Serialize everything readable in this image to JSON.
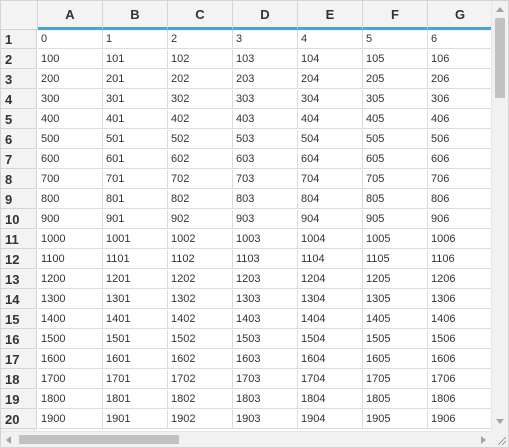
{
  "grid": {
    "columns": [
      "A",
      "B",
      "C",
      "D",
      "E",
      "F",
      "G"
    ],
    "rows": [
      {
        "label": "1",
        "values": [
          "0",
          "1",
          "2",
          "3",
          "4",
          "5",
          "6"
        ]
      },
      {
        "label": "2",
        "values": [
          "100",
          "101",
          "102",
          "103",
          "104",
          "105",
          "106"
        ]
      },
      {
        "label": "3",
        "values": [
          "200",
          "201",
          "202",
          "203",
          "204",
          "205",
          "206"
        ]
      },
      {
        "label": "4",
        "values": [
          "300",
          "301",
          "302",
          "303",
          "304",
          "305",
          "306"
        ]
      },
      {
        "label": "5",
        "values": [
          "400",
          "401",
          "402",
          "403",
          "404",
          "405",
          "406"
        ]
      },
      {
        "label": "6",
        "values": [
          "500",
          "501",
          "502",
          "503",
          "504",
          "505",
          "506"
        ]
      },
      {
        "label": "7",
        "values": [
          "600",
          "601",
          "602",
          "603",
          "604",
          "605",
          "606"
        ]
      },
      {
        "label": "8",
        "values": [
          "700",
          "701",
          "702",
          "703",
          "704",
          "705",
          "706"
        ]
      },
      {
        "label": "9",
        "values": [
          "800",
          "801",
          "802",
          "803",
          "804",
          "805",
          "806"
        ]
      },
      {
        "label": "10",
        "values": [
          "900",
          "901",
          "902",
          "903",
          "904",
          "905",
          "906"
        ]
      },
      {
        "label": "11",
        "values": [
          "1000",
          "1001",
          "1002",
          "1003",
          "1004",
          "1005",
          "1006"
        ]
      },
      {
        "label": "12",
        "values": [
          "1100",
          "1101",
          "1102",
          "1103",
          "1104",
          "1105",
          "1106"
        ]
      },
      {
        "label": "13",
        "values": [
          "1200",
          "1201",
          "1202",
          "1203",
          "1204",
          "1205",
          "1206"
        ]
      },
      {
        "label": "14",
        "values": [
          "1300",
          "1301",
          "1302",
          "1303",
          "1304",
          "1305",
          "1306"
        ]
      },
      {
        "label": "15",
        "values": [
          "1400",
          "1401",
          "1402",
          "1403",
          "1404",
          "1405",
          "1406"
        ]
      },
      {
        "label": "16",
        "values": [
          "1500",
          "1501",
          "1502",
          "1503",
          "1504",
          "1505",
          "1506"
        ]
      },
      {
        "label": "17",
        "values": [
          "1600",
          "1601",
          "1602",
          "1603",
          "1604",
          "1605",
          "1606"
        ]
      },
      {
        "label": "18",
        "values": [
          "1700",
          "1701",
          "1702",
          "1703",
          "1704",
          "1705",
          "1706"
        ]
      },
      {
        "label": "19",
        "values": [
          "1800",
          "1801",
          "1802",
          "1803",
          "1804",
          "1805",
          "1806"
        ]
      },
      {
        "label": "20",
        "values": [
          "1900",
          "1901",
          "1902",
          "1903",
          "1904",
          "1905",
          "1906"
        ]
      }
    ]
  },
  "colors": {
    "header_accent": "#4ca3dc",
    "header_background": "#f3f3f3",
    "grid_line": "#dcdcdc"
  },
  "icons": {
    "scroll_up": "chevron-up-icon",
    "scroll_down": "chevron-down-icon",
    "scroll_left": "chevron-left-icon",
    "scroll_right": "chevron-right-icon",
    "resize": "resize-grip-icon"
  }
}
